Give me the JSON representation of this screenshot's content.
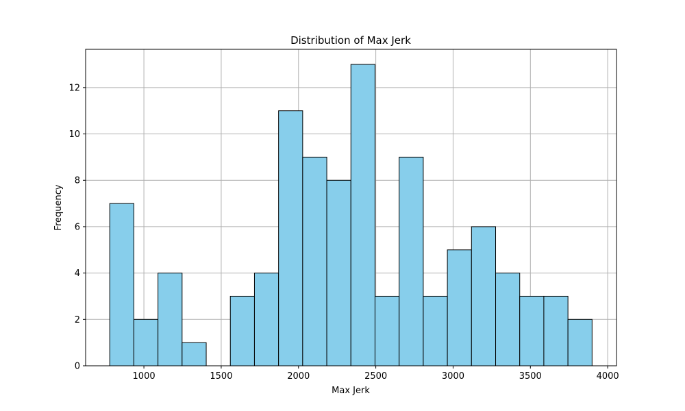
{
  "chart_data": {
    "type": "bar",
    "title": "Distribution of Max Jerk",
    "xlabel": "Max Jerk",
    "ylabel": "Frequency",
    "xlim": [
      623,
      4057
    ],
    "ylim": [
      0,
      13.65
    ],
    "xticks": [
      1000,
      1500,
      2000,
      2500,
      3000,
      3500,
      4000
    ],
    "yticks": [
      0,
      2,
      4,
      6,
      8,
      10,
      12
    ],
    "grid": true,
    "bar_color": "#87CEEB",
    "edge_color": "#000000",
    "grid_color": "#b0b0b0",
    "bins": [
      {
        "start": 779,
        "end": 935,
        "count": 7
      },
      {
        "start": 935,
        "end": 1091,
        "count": 2
      },
      {
        "start": 1091,
        "end": 1247,
        "count": 4
      },
      {
        "start": 1247,
        "end": 1403,
        "count": 1
      },
      {
        "start": 1403,
        "end": 1559,
        "count": 0
      },
      {
        "start": 1559,
        "end": 1715,
        "count": 3
      },
      {
        "start": 1715,
        "end": 1871,
        "count": 4
      },
      {
        "start": 1871,
        "end": 2027,
        "count": 11
      },
      {
        "start": 2027,
        "end": 2183,
        "count": 9
      },
      {
        "start": 2183,
        "end": 2339,
        "count": 8
      },
      {
        "start": 2339,
        "end": 2495,
        "count": 13
      },
      {
        "start": 2495,
        "end": 2651,
        "count": 3
      },
      {
        "start": 2651,
        "end": 2807,
        "count": 9
      },
      {
        "start": 2807,
        "end": 2963,
        "count": 3
      },
      {
        "start": 2963,
        "end": 3119,
        "count": 5
      },
      {
        "start": 3119,
        "end": 3275,
        "count": 6
      },
      {
        "start": 3275,
        "end": 3431,
        "count": 4
      },
      {
        "start": 3431,
        "end": 3587,
        "count": 3
      },
      {
        "start": 3587,
        "end": 3743,
        "count": 3
      },
      {
        "start": 3743,
        "end": 3899,
        "count": 2
      }
    ]
  }
}
